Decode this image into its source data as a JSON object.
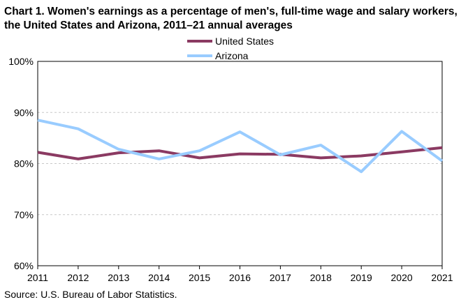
{
  "chart_data": {
    "type": "line",
    "title": "Chart 1. Women's earnings as a percentage of men's, full-time wage and salary workers, the United States and Arizona, 2011–21 annual averages",
    "x": [
      "2011",
      "2012",
      "2013",
      "2014",
      "2015",
      "2016",
      "2017",
      "2018",
      "2019",
      "2020",
      "2021"
    ],
    "series": [
      {
        "name": "United States",
        "color": "#8B3A62",
        "values": [
          82.2,
          80.9,
          82.1,
          82.5,
          81.1,
          81.9,
          81.8,
          81.1,
          81.5,
          82.3,
          83.1
        ]
      },
      {
        "name": "Arizona",
        "color": "#99CCFF",
        "values": [
          88.5,
          86.8,
          82.8,
          80.9,
          82.5,
          86.2,
          81.7,
          83.6,
          78.4,
          86.3,
          80.5
        ]
      }
    ],
    "y_ticks": [
      "60%",
      "70%",
      "80%",
      "90%",
      "100%"
    ],
    "ylim": [
      60,
      100
    ],
    "grid": true,
    "legend_position": "top-center",
    "source": "Source:  U.S. Bureau of Labor Statistics."
  }
}
